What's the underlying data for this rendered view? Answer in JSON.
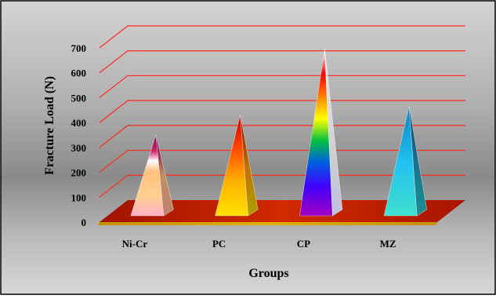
{
  "chart_data": {
    "type": "bar",
    "bar_shape": "pyramid-3d",
    "categories": [
      "Ni-Cr",
      "PC",
      "CP",
      "MZ"
    ],
    "values": [
      315,
      395,
      660,
      430
    ],
    "title": "",
    "xlabel": "Groups",
    "ylabel": "Fracture Load (N)",
    "ylim": [
      0,
      700
    ],
    "yticks": [
      "0",
      "100",
      "200",
      "300",
      "400",
      "500",
      "600",
      "700"
    ],
    "grid": true,
    "legend": "none",
    "colors": {
      "gridline": "#ff2a1a",
      "floor_top": "#c01800",
      "floor_front": "#d8a000",
      "background_outer": "#c8c8c8",
      "background_mid": "#8f8f8f",
      "frame": "#000000"
    },
    "bar_fills": [
      "ni-cr-gradient",
      "pc-gradient",
      "cp-rainbow-gradient",
      "mz-gradient"
    ]
  }
}
